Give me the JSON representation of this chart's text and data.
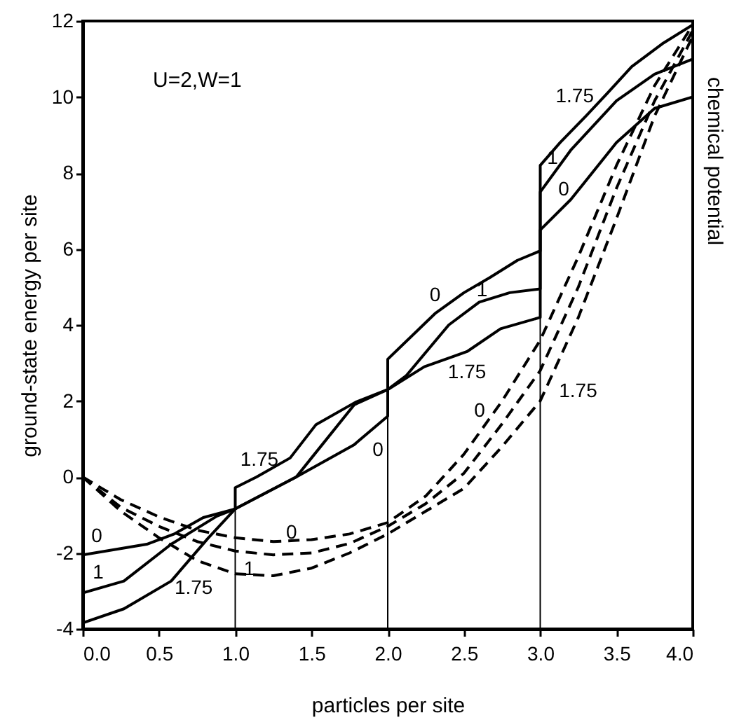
{
  "chart_data": {
    "type": "line",
    "xlabel": "particles per site",
    "ylabel": "ground-state energy per site",
    "y2label": "chemical potential",
    "xlim": [
      0,
      4
    ],
    "ylim": [
      -4,
      12
    ],
    "xticks": [
      {
        "value": 0,
        "label": "0.0"
      },
      {
        "value": 0.5,
        "label": "0.5"
      },
      {
        "value": 1,
        "label": "1.0"
      },
      {
        "value": 1.5,
        "label": "1.5"
      },
      {
        "value": 2,
        "label": "2.0"
      },
      {
        "value": 2.5,
        "label": "2.5"
      },
      {
        "value": 3,
        "label": "3.0"
      },
      {
        "value": 3.5,
        "label": "3.5"
      },
      {
        "value": 4,
        "label": "4.0"
      }
    ],
    "yticks": [
      -4,
      -2,
      0,
      2,
      4,
      6,
      8,
      10,
      12
    ],
    "series": [
      {
        "color": "#000000",
        "line_style": "solid",
        "x": [
          0,
          0.42,
          0.6,
          0.79,
          1,
          1.4,
          1.78,
          2,
          2,
          2.31,
          2.5,
          2.67,
          2.85,
          3,
          3,
          3.2,
          3.5,
          3.75,
          4
        ],
        "values": [
          -2.05,
          -1.77,
          -1.5,
          -1.07,
          -0.84,
          0,
          0.85,
          1.6,
          3.1,
          4.3,
          4.85,
          5.25,
          5.7,
          5.95,
          6.5,
          7.3,
          8.8,
          9.7,
          10.0
        ]
      },
      {
        "color": "#000000",
        "line_style": "solid",
        "x": [
          0,
          0.27,
          0.58,
          0.88,
          1,
          1.4,
          1.5,
          1.78,
          2,
          2.12,
          2.4,
          2.6,
          2.8,
          3,
          3,
          3.2,
          3.5,
          3.75,
          4
        ],
        "values": [
          -3.05,
          -2.74,
          -1.77,
          -1.03,
          -0.84,
          0,
          0.5,
          1.9,
          2.3,
          2.66,
          4.0,
          4.6,
          4.85,
          4.95,
          7.5,
          8.6,
          9.9,
          10.6,
          11.0
        ]
      },
      {
        "color": "#000000",
        "line_style": "solid",
        "x": [
          0,
          0.27,
          0.58,
          0.82,
          1,
          1,
          1.14,
          1.36,
          1.53,
          1.79,
          2,
          2.24,
          2.52,
          2.74,
          3,
          3,
          3.13,
          3.3,
          3.44,
          3.6,
          3.8,
          4
        ],
        "values": [
          -3.84,
          -3.47,
          -2.74,
          -1.62,
          -0.84,
          -0.28,
          0,
          0.5,
          1.38,
          1.97,
          2.3,
          2.9,
          3.3,
          3.9,
          4.2,
          8.2,
          8.8,
          9.5,
          10.1,
          10.8,
          11.4,
          11.9
        ]
      },
      {
        "color": "#000000",
        "line_style": "dashed",
        "x": [
          0,
          0.25,
          0.5,
          0.75,
          1,
          1.25,
          1.5,
          1.75,
          2,
          2.25,
          2.5,
          2.75,
          3,
          3.25,
          3.5,
          3.75,
          4
        ],
        "values": [
          0,
          -0.6,
          -1.05,
          -1.4,
          -1.6,
          -1.7,
          -1.65,
          -1.5,
          -1.2,
          -0.5,
          0.6,
          2.0,
          3.6,
          5.8,
          8.2,
          10.3,
          11.9
        ]
      },
      {
        "color": "#000000",
        "line_style": "dashed",
        "x": [
          0,
          0.25,
          0.5,
          0.75,
          1,
          1.25,
          1.5,
          1.75,
          2,
          2.25,
          2.5,
          2.75,
          3,
          3.25,
          3.5,
          3.75,
          4
        ],
        "values": [
          0,
          -0.8,
          -1.3,
          -1.7,
          -1.95,
          -2.05,
          -2.0,
          -1.75,
          -1.3,
          -0.7,
          0.1,
          1.4,
          2.8,
          5.0,
          7.6,
          9.9,
          11.75
        ]
      },
      {
        "color": "#000000",
        "line_style": "dashed",
        "x": [
          0,
          0.25,
          0.5,
          0.75,
          1,
          1.25,
          1.5,
          1.75,
          2,
          2.25,
          2.5,
          2.75,
          3,
          3.25,
          3.5,
          3.75,
          4
        ],
        "values": [
          0,
          -0.9,
          -1.6,
          -2.2,
          -2.55,
          -2.6,
          -2.4,
          -2.0,
          -1.5,
          -0.9,
          -0.3,
          0.8,
          2.0,
          4.2,
          6.8,
          9.5,
          11.6
        ]
      }
    ],
    "ref_lines": [
      {
        "axis": "x",
        "value": 1,
        "color": "#000000"
      },
      {
        "axis": "x",
        "value": 2,
        "color": "#000000"
      },
      {
        "axis": "x",
        "value": 3,
        "color": "#000000"
      }
    ],
    "annotations": [
      "U=2,W=1",
      {
        "text": "0",
        "x": 0,
        "y": -2.05
      },
      {
        "text": "1",
        "x": 0,
        "y": -3.05
      },
      {
        "text": "1.75",
        "x": 0.58,
        "y": -2.74
      },
      {
        "text": "1.75",
        "x": 1.14,
        "y": 0
      },
      {
        "text": "0",
        "x": 1.78,
        "y": 0.85
      },
      {
        "text": "0",
        "x": 1.25,
        "y": -1.7
      },
      {
        "text": "1",
        "x": 1,
        "y": -1.95
      },
      {
        "text": "0",
        "x": 2.31,
        "y": 4.3
      },
      {
        "text": "1",
        "x": 2.6,
        "y": 4.6
      },
      {
        "text": "1.75",
        "x": 2.52,
        "y": 3.3
      },
      {
        "text": "0",
        "x": 2.75,
        "y": 2.0
      },
      {
        "text": "1.75",
        "x": 3,
        "y": 2.0
      },
      {
        "text": "1.75",
        "x": 3.3,
        "y": 9.5
      },
      {
        "text": "1",
        "x": 3.2,
        "y": 8.6
      },
      {
        "text": "0",
        "x": 3.2,
        "y": 7.3
      }
    ]
  }
}
